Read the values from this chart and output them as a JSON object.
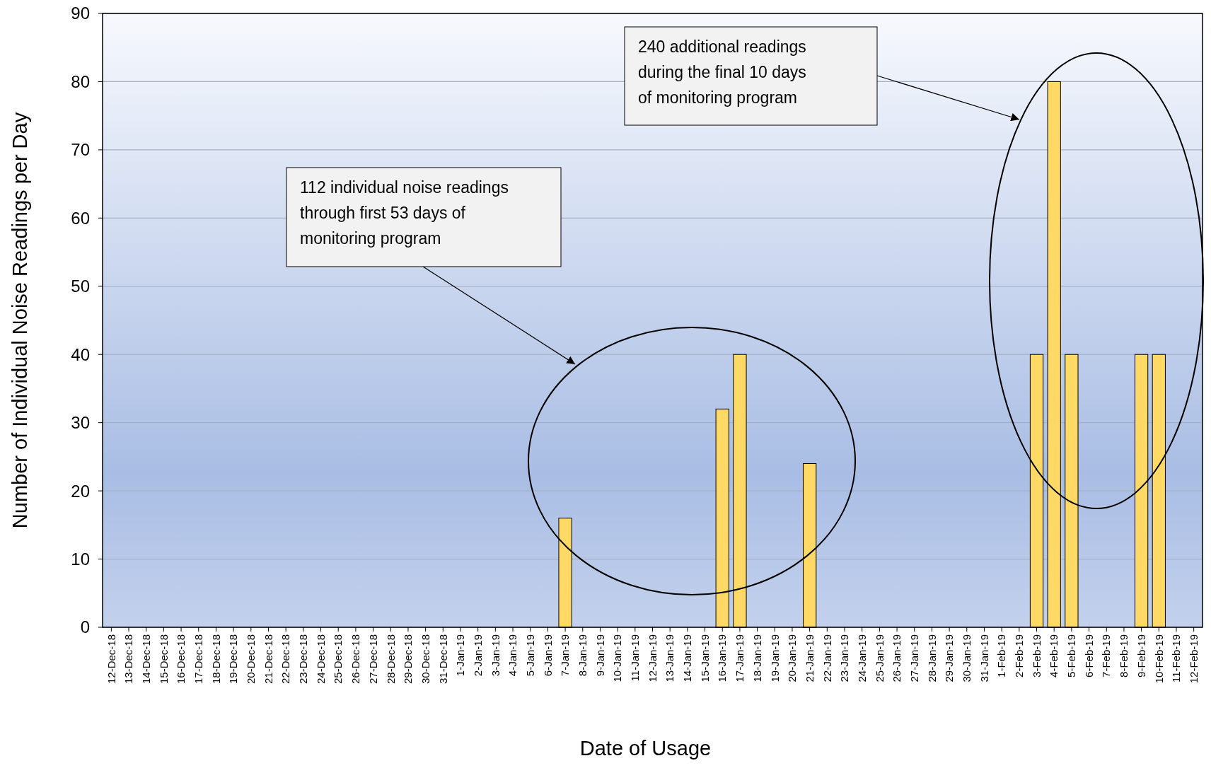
{
  "chart_data": {
    "type": "bar",
    "xlabel": "Date of Usage",
    "ylabel": "Number of Individual Noise Readings per Day",
    "categories": [
      "12-Dec-18",
      "13-Dec-18",
      "14-Dec-18",
      "15-Dec-18",
      "16-Dec-18",
      "17-Dec-18",
      "18-Dec-18",
      "19-Dec-18",
      "20-Dec-18",
      "21-Dec-18",
      "22-Dec-18",
      "23-Dec-18",
      "24-Dec-18",
      "25-Dec-18",
      "26-Dec-18",
      "27-Dec-18",
      "28-Dec-18",
      "29-Dec-18",
      "30-Dec-18",
      "31-Dec-18",
      "1-Jan-19",
      "2-Jan-19",
      "3-Jan-19",
      "4-Jan-19",
      "5-Jan-19",
      "6-Jan-19",
      "7-Jan-19",
      "8-Jan-19",
      "9-Jan-19",
      "10-Jan-19",
      "11-Jan-19",
      "12-Jan-19",
      "13-Jan-19",
      "14-Jan-19",
      "15-Jan-19",
      "16-Jan-19",
      "17-Jan-19",
      "18-Jan-19",
      "19-Jan-19",
      "20-Jan-19",
      "21-Jan-19",
      "22-Jan-19",
      "23-Jan-19",
      "24-Jan-19",
      "25-Jan-19",
      "26-Jan-19",
      "27-Jan-19",
      "28-Jan-19",
      "29-Jan-19",
      "30-Jan-19",
      "31-Jan-19",
      "1-Feb-19",
      "2-Feb-19",
      "3-Feb-19",
      "4-Feb-19",
      "5-Feb-19",
      "6-Feb-19",
      "7-Feb-19",
      "8-Feb-19",
      "9-Feb-19",
      "10-Feb-19",
      "11-Feb-19",
      "12-Feb-19"
    ],
    "values": [
      0,
      0,
      0,
      0,
      0,
      0,
      0,
      0,
      0,
      0,
      0,
      0,
      0,
      0,
      0,
      0,
      0,
      0,
      0,
      0,
      0,
      0,
      0,
      0,
      0,
      0,
      16,
      0,
      0,
      0,
      0,
      0,
      0,
      0,
      0,
      32,
      40,
      0,
      0,
      0,
      24,
      0,
      0,
      0,
      0,
      0,
      0,
      0,
      0,
      0,
      0,
      0,
      0,
      40,
      80,
      40,
      0,
      0,
      0,
      40,
      40,
      0,
      0
    ],
    "color": "#ffd966",
    "ylim": [
      0,
      90
    ],
    "yticks": [
      0,
      10,
      20,
      30,
      40,
      50,
      60,
      70,
      80,
      90
    ],
    "grid": "y",
    "annotations": [
      "112 individual noise readings through first 53 days of monitoring program",
      "240 additional readings during the final 10 days of monitoring program"
    ]
  }
}
